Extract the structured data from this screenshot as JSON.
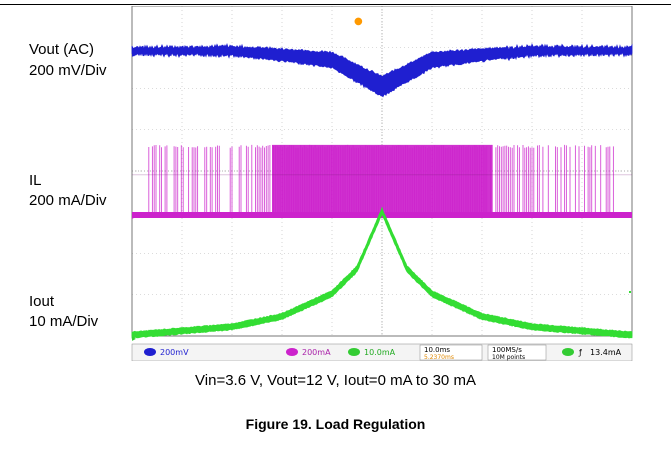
{
  "labels": {
    "vout": "Vout (AC)",
    "vout_scale": "200 mV/Div",
    "il": "IL",
    "il_scale": "200 mA/Div",
    "iout": "Iout",
    "iout_scale": "10 mA/Div"
  },
  "caption": "Vin=3.6 V, Vout=12 V, Iout=0 mA to 30 mA",
  "figure_title": "Figure 19. Load Regulation",
  "scope_status": {
    "ch1": "200mV",
    "ch2": "200mA",
    "ch3": "10.0mA",
    "timebase": "10.0ms",
    "trigger_pos": "5.2370ms",
    "rate": "100MS/s",
    "points": "10M points",
    "trigger_level": "13.4mA"
  },
  "colors": {
    "vout": "#1f1fd0",
    "il": "#cc22cc",
    "iout": "#33dd33",
    "grid": "#b8b8b8",
    "trigger": "#ff9900"
  },
  "chart_data": {
    "type": "line",
    "grid": true,
    "x_divisions": 10,
    "y_divisions": 8,
    "x_domain": [
      0,
      100
    ],
    "x_unit": "ms",
    "series": [
      {
        "name": "Vout (AC)",
        "scale": "200 mV/Div",
        "x": [
          0,
          20,
          40,
          50,
          60,
          80,
          100
        ],
        "values": [
          0.0,
          0.0,
          -0.25,
          -0.9,
          -0.25,
          0.0,
          0.0
        ],
        "unit": "div"
      },
      {
        "name": "IL",
        "scale": "200 mA/Div",
        "x": [
          0,
          28,
          72,
          100
        ],
        "values": [
          0,
          1.7,
          1.7,
          0
        ],
        "unit": "div",
        "note": "switching burst"
      },
      {
        "name": "Iout",
        "scale": "10 mA/Div",
        "x": [
          0,
          20,
          30,
          40,
          45,
          50,
          55,
          60,
          70,
          80,
          100
        ],
        "values": [
          0,
          0.2,
          0.45,
          1.0,
          1.6,
          3.0,
          1.6,
          1.0,
          0.45,
          0.2,
          0
        ],
        "unit": "div"
      }
    ]
  }
}
